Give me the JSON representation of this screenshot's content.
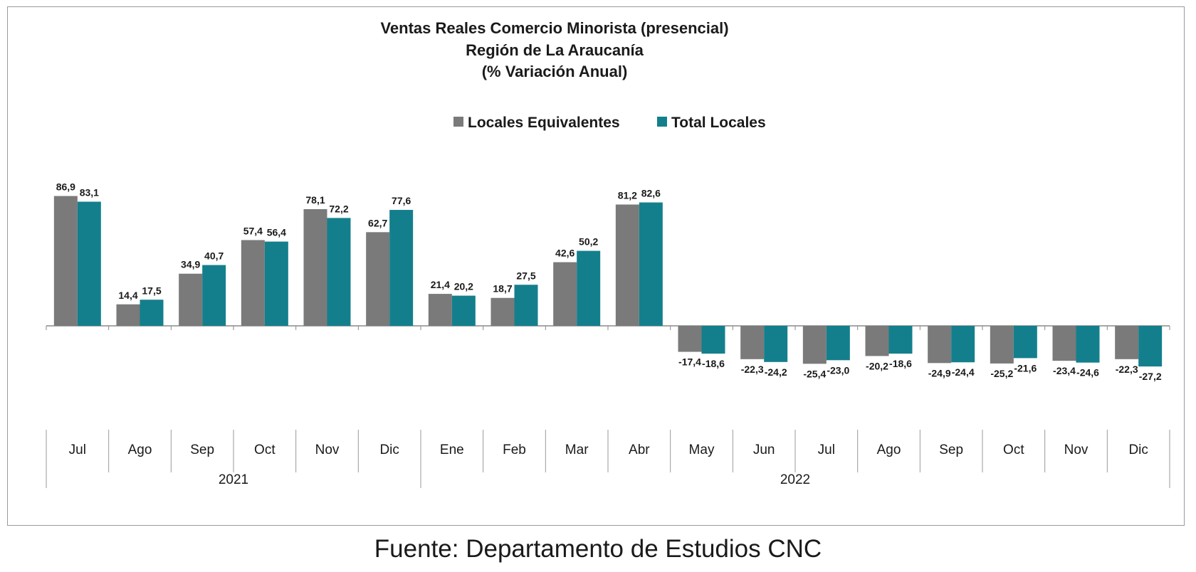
{
  "source": "Fuente: Departamento de Estudios CNC",
  "chart_data": {
    "type": "bar",
    "title": [
      "Ventas Reales Comercio Minorista (presencial)",
      "Región de La Araucanía",
      "(% Variación Anual)"
    ],
    "categories": [
      "Jul",
      "Ago",
      "Sep",
      "Oct",
      "Nov",
      "Dic",
      "Ene",
      "Feb",
      "Mar",
      "Abr",
      "May",
      "Jun",
      "Jul",
      "Ago",
      "Sep",
      "Oct",
      "Nov",
      "Dic"
    ],
    "category_groups": [
      {
        "label": "2021",
        "count": 6
      },
      {
        "label": "2022",
        "count": 12
      }
    ],
    "series": [
      {
        "name": "Locales Equivalentes",
        "color": "#7a7a7a",
        "values": [
          86.9,
          14.4,
          34.9,
          57.4,
          78.1,
          62.7,
          21.4,
          18.7,
          42.6,
          81.2,
          -17.4,
          -22.3,
          -25.4,
          -20.2,
          -24.9,
          -25.2,
          -23.4,
          -22.3
        ],
        "labels": [
          "86,9",
          "14,4",
          "34,9",
          "57,4",
          "78,1",
          "62,7",
          "21,4",
          "18,7",
          "42,6",
          "81,2",
          "-17,4",
          "-22,3",
          "-25,4",
          "-20,2",
          "-24,9",
          "-25,2",
          "-23,4",
          "-22,3"
        ]
      },
      {
        "name": "Total Locales",
        "color": "#147f8c",
        "values": [
          83.1,
          17.5,
          40.7,
          56.4,
          72.2,
          77.6,
          20.2,
          27.5,
          50.2,
          82.6,
          -18.6,
          -24.2,
          -23.0,
          -18.6,
          -24.4,
          -21.6,
          -24.6,
          -27.2
        ],
        "labels": [
          "83,1",
          "17,5",
          "40,7",
          "56,4",
          "72,2",
          "77,6",
          "20,2",
          "27,5",
          "50,2",
          "82,6",
          "-18,6",
          "-24,2",
          "-23,0",
          "-18,6",
          "-24,4",
          "-21,6",
          "-24,6",
          "-27,2"
        ]
      }
    ],
    "legend_position": "top-center",
    "grid": false,
    "ylim": [
      -35,
      95
    ]
  }
}
